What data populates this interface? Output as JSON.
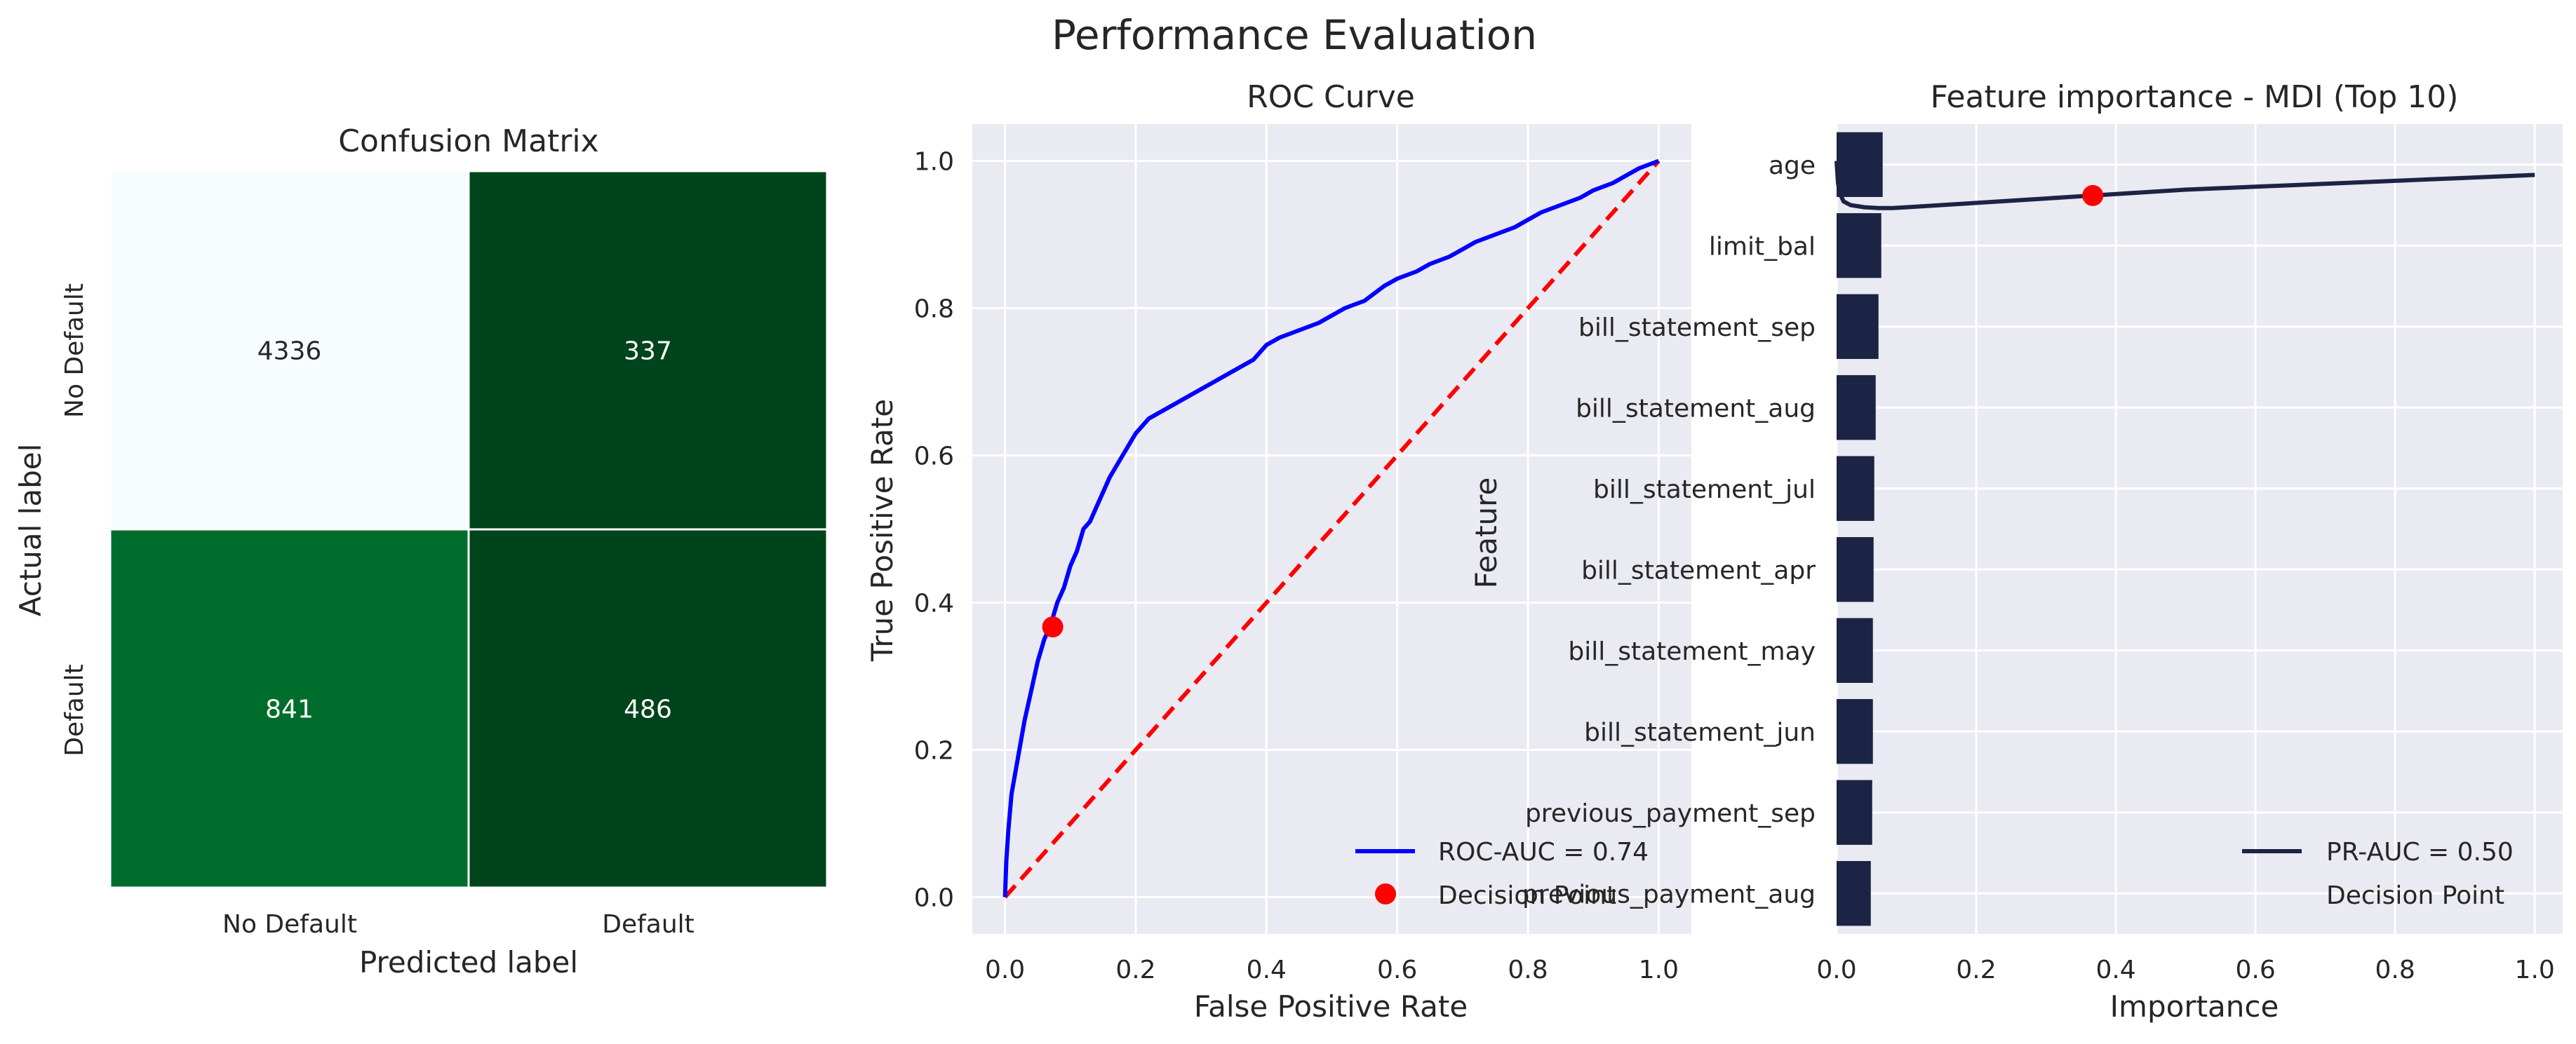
{
  "figure": {
    "title": "Performance Evaluation"
  },
  "colors": {
    "axes_bg": "#eaeaf2",
    "grid": "#ffffff",
    "text": "#262626",
    "roc_line": "#0000ff",
    "diagonal": "#ff0000",
    "decision_point": "#ff0000",
    "bar": "#1b2444",
    "pr_line": "#1b2444",
    "cm_low": "#f7fcfd",
    "cm_high": "#00441b"
  },
  "chart_data": [
    {
      "type": "heatmap",
      "title": "Confusion Matrix",
      "xlabel": "Predicted label",
      "ylabel": "Actual label",
      "x_categories": [
        "No Default",
        "Default"
      ],
      "y_categories": [
        "No Default",
        "Default"
      ],
      "values": [
        [
          4336,
          337
        ],
        [
          841,
          486
        ]
      ],
      "colormap": "Greens",
      "color_range": [
        337,
        4336
      ],
      "colorbar": false,
      "cell_text_color": [
        "#262626",
        "#ffffff",
        "#ffffff",
        "#ffffff"
      ],
      "cell_fill_override": [
        null,
        "#00441b",
        "#006d2c",
        "#00441b"
      ]
    },
    {
      "type": "line",
      "title": "ROC Curve",
      "xlabel": "False Positive Rate",
      "ylabel": "True Positive Rate",
      "xlim": [
        -0.05,
        1.05
      ],
      "ylim": [
        -0.05,
        1.05
      ],
      "xticks": [
        "0.0",
        "0.2",
        "0.4",
        "0.6",
        "0.8",
        "1.0"
      ],
      "yticks": [
        "0.0",
        "0.2",
        "0.4",
        "0.6",
        "0.8",
        "1.0"
      ],
      "grid": true,
      "legend_position": "lower-right",
      "series": [
        {
          "name": "ROC-AUC = 0.74",
          "x": [
            0,
            0.002,
            0.005,
            0.01,
            0.02,
            0.03,
            0.04,
            0.05,
            0.06,
            0.07,
            0.08,
            0.09,
            0.1,
            0.11,
            0.12,
            0.13,
            0.14,
            0.15,
            0.16,
            0.18,
            0.2,
            0.22,
            0.24,
            0.26,
            0.28,
            0.3,
            0.32,
            0.34,
            0.36,
            0.38,
            0.4,
            0.42,
            0.45,
            0.48,
            0.5,
            0.52,
            0.55,
            0.58,
            0.6,
            0.63,
            0.65,
            0.68,
            0.7,
            0.72,
            0.75,
            0.78,
            0.8,
            0.82,
            0.85,
            0.88,
            0.9,
            0.93,
            0.95,
            0.97,
            1.0
          ],
          "y": [
            0,
            0.05,
            0.09,
            0.14,
            0.19,
            0.24,
            0.28,
            0.32,
            0.35,
            0.37,
            0.4,
            0.42,
            0.45,
            0.47,
            0.5,
            0.51,
            0.53,
            0.55,
            0.57,
            0.6,
            0.63,
            0.65,
            0.66,
            0.67,
            0.68,
            0.69,
            0.7,
            0.71,
            0.72,
            0.73,
            0.75,
            0.76,
            0.77,
            0.78,
            0.79,
            0.8,
            0.81,
            0.83,
            0.84,
            0.85,
            0.86,
            0.87,
            0.88,
            0.89,
            0.9,
            0.91,
            0.92,
            0.93,
            0.94,
            0.95,
            0.96,
            0.97,
            0.98,
            0.99,
            1.0
          ]
        },
        {
          "name": "",
          "style": "dashed",
          "x": [
            0,
            1
          ],
          "y": [
            0,
            1
          ]
        }
      ],
      "points": [
        {
          "name": "Decision Point",
          "x": 0.073,
          "y": 0.367
        }
      ]
    },
    {
      "type": "bar",
      "orientation": "horizontal",
      "title": "Feature importance - MDI (Top 10)",
      "xlabel": "Importance",
      "ylabel": "Feature",
      "xlim": [
        0,
        1.04
      ],
      "xticks": [
        "0.0",
        "0.2",
        "0.4",
        "0.6",
        "0.8",
        "1.0"
      ],
      "grid": true,
      "categories": [
        "age",
        "limit_bal",
        "bill_statement_sep",
        "bill_statement_aug",
        "bill_statement_jul",
        "bill_statement_apr",
        "bill_statement_may",
        "bill_statement_jun",
        "previous_payment_sep",
        "previous_payment_aug"
      ],
      "values": [
        0.066,
        0.064,
        0.06,
        0.056,
        0.054,
        0.053,
        0.052,
        0.052,
        0.051,
        0.049
      ]
    },
    {
      "type": "line",
      "overlay_on": "Feature importance - MDI (Top 10)",
      "legend_position": "lower-right",
      "series": [
        {
          "name": "PR-AUC = 0.50",
          "x": [
            0,
            0.002,
            0.005,
            0.01,
            0.02,
            0.04,
            0.06,
            0.08,
            0.1,
            0.15,
            0.2,
            0.25,
            0.3,
            0.35,
            0.367,
            0.4,
            0.45,
            0.5,
            0.55,
            0.6,
            0.65,
            0.7,
            0.75,
            0.8,
            0.85,
            0.9,
            0.95,
            1.0
          ],
          "y": [
            1.0,
            0.97,
            0.955,
            0.945,
            0.94,
            0.937,
            0.936,
            0.936,
            0.937,
            0.94,
            0.943,
            0.946,
            0.949,
            0.952,
            0.953,
            0.955,
            0.958,
            0.961,
            0.963,
            0.965,
            0.967,
            0.969,
            0.971,
            0.973,
            0.975,
            0.977,
            0.979,
            0.981
          ]
        }
      ],
      "points": [
        {
          "name": "Decision Point",
          "x": 0.367,
          "y": 0.953
        }
      ]
    }
  ]
}
